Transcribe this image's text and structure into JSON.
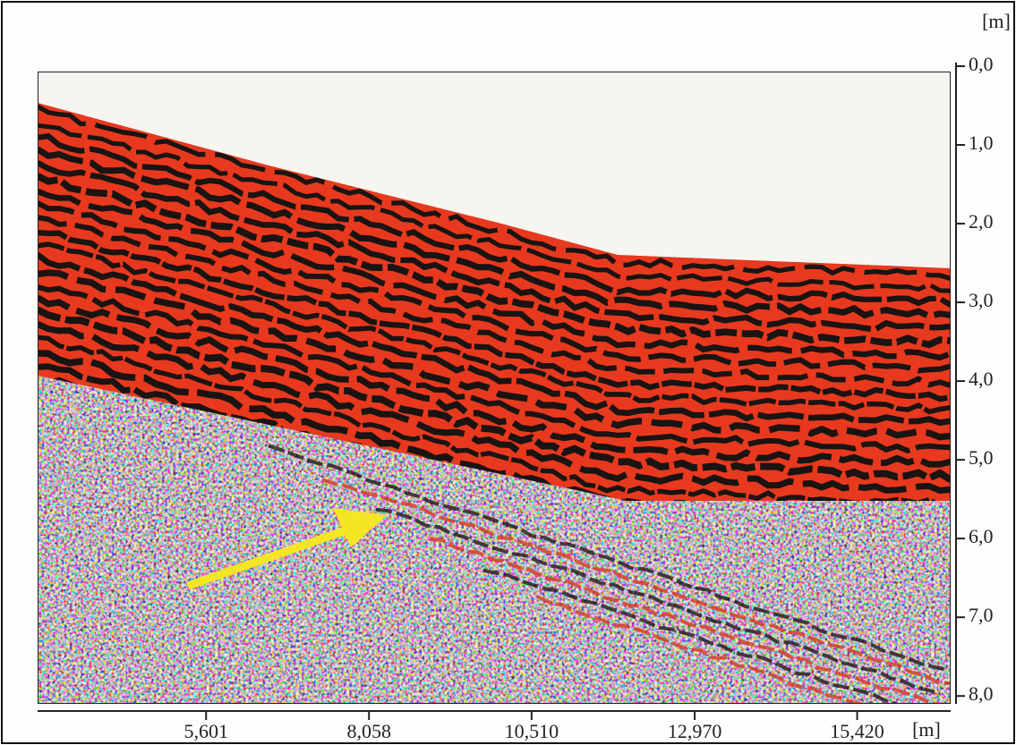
{
  "chart_data": {
    "type": "radargram",
    "x_unit": "[m]",
    "y_unit": "[m]",
    "xlim": [
      3.06,
      16.83
    ],
    "ylim": [
      0,
      8.1
    ],
    "xticks": [
      {
        "value": 5.601,
        "label": "5,601"
      },
      {
        "value": 8.058,
        "label": "8,058"
      },
      {
        "value": 10.51,
        "label": "10,510"
      },
      {
        "value": 12.97,
        "label": "12,970"
      },
      {
        "value": 15.42,
        "label": "15,420"
      }
    ],
    "yticks": [
      {
        "value": 0,
        "label": "0,0"
      },
      {
        "value": 1,
        "label": "1,0"
      },
      {
        "value": 2,
        "label": "2,0"
      },
      {
        "value": 3,
        "label": "3,0"
      },
      {
        "value": 4,
        "label": "4,0"
      },
      {
        "value": 5,
        "label": "5,0"
      },
      {
        "value": 6,
        "label": "6,0"
      },
      {
        "value": 7,
        "label": "7,0"
      },
      {
        "value": 8,
        "label": "8,0"
      }
    ]
  }
}
